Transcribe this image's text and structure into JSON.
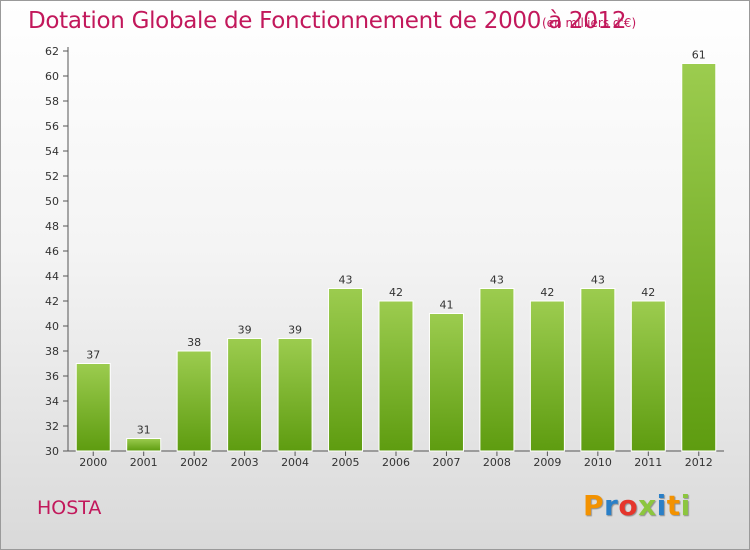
{
  "header": {
    "title": "Dotation Globale de Fonctionnement de 2000 à 2012",
    "unit": "(en milliers d'€)"
  },
  "footer": {
    "commune": "HOSTA",
    "logo": [
      "P",
      "r",
      "o",
      "x",
      "i",
      "t",
      "i"
    ]
  },
  "colors": {
    "title": "#c2185b",
    "bar_top": "#9ccc4f",
    "bar_bottom": "#5e9c10",
    "logo": [
      "#f39200",
      "#2a7fc7",
      "#e5352b",
      "#8cc63f",
      "#2a7fc7",
      "#f39200",
      "#8cc63f"
    ]
  },
  "chart_data": {
    "type": "bar",
    "categories": [
      "2000",
      "2001",
      "2002",
      "2003",
      "2004",
      "2005",
      "2006",
      "2007",
      "2008",
      "2009",
      "2010",
      "2011",
      "2012"
    ],
    "values": [
      37,
      31,
      38,
      39,
      39,
      43,
      42,
      41,
      43,
      42,
      43,
      42,
      61
    ],
    "ylim": [
      30,
      62
    ],
    "yticks": [
      30,
      32,
      34,
      36,
      38,
      40,
      42,
      44,
      46,
      48,
      50,
      52,
      54,
      56,
      58,
      60,
      62
    ],
    "grid": false,
    "data_labels": true
  }
}
